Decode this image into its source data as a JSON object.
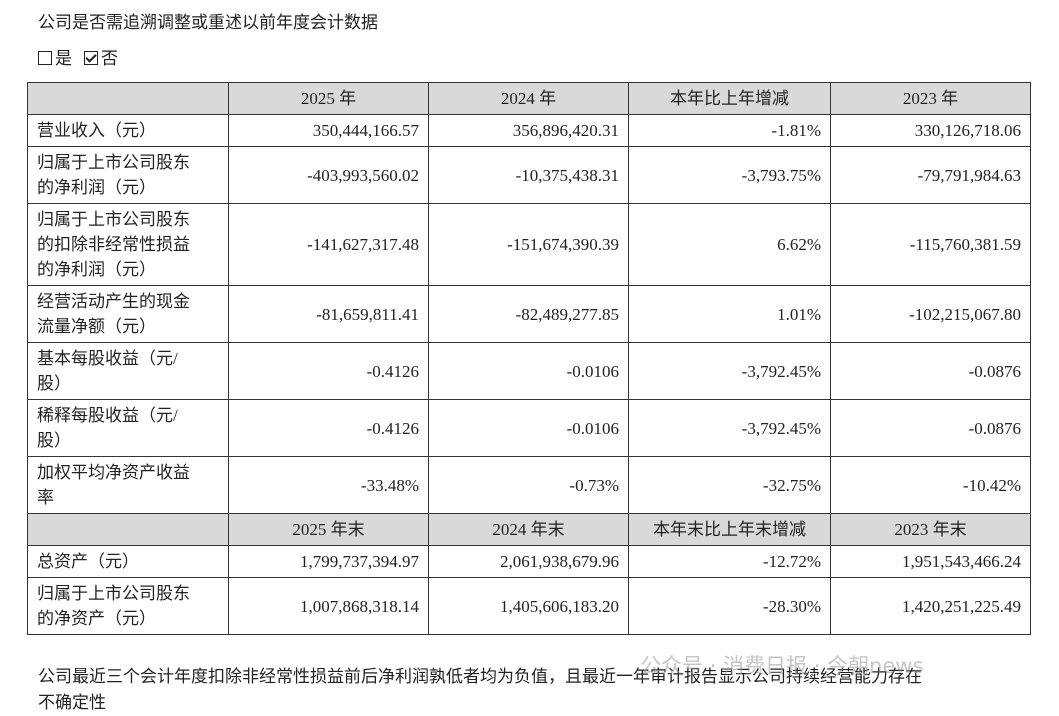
{
  "title": "公司是否需追溯调整或重述以前年度会计数据",
  "checkboxes": [
    {
      "label": "是",
      "checked": false
    },
    {
      "label": "否",
      "checked": true
    }
  ],
  "sections": [
    {
      "headers": [
        "2025 年",
        "2024 年",
        "本年比上年增减",
        "2023 年"
      ],
      "rows": [
        {
          "label": [
            "营业收入（元）"
          ],
          "cells": [
            "350,444,166.57",
            "356,896,420.31",
            "-1.81%",
            "330,126,718.06"
          ]
        },
        {
          "label": [
            "归属于上市公司股东",
            "的净利润（元）"
          ],
          "cells": [
            "-403,993,560.02",
            "-10,375,438.31",
            "-3,793.75%",
            "-79,791,984.63"
          ]
        },
        {
          "label": [
            "归属于上市公司股东",
            "的扣除非经常性损益",
            "的净利润（元）"
          ],
          "cells": [
            "-141,627,317.48",
            "-151,674,390.39",
            "6.62%",
            "-115,760,381.59"
          ]
        },
        {
          "label": [
            "经营活动产生的现金",
            "流量净额（元）"
          ],
          "cells": [
            "-81,659,811.41",
            "-82,489,277.85",
            "1.01%",
            "-102,215,067.80"
          ]
        },
        {
          "label": [
            "基本每股收益（元/",
            "股）"
          ],
          "cells": [
            "-0.4126",
            "-0.0106",
            "-3,792.45%",
            "-0.0876"
          ]
        },
        {
          "label": [
            "稀释每股收益（元/",
            "股）"
          ],
          "cells": [
            "-0.4126",
            "-0.0106",
            "-3,792.45%",
            "-0.0876"
          ]
        },
        {
          "label": [
            "加权平均净资产收益",
            "率"
          ],
          "cells": [
            "-33.48%",
            "-0.73%",
            "-32.75%",
            "-10.42%"
          ]
        }
      ]
    },
    {
      "headers": [
        "2025 年末",
        "2024 年末",
        "本年末比上年末增减",
        "2023 年末"
      ],
      "rows": [
        {
          "label": [
            "总资产（元）"
          ],
          "cells": [
            "1,799,737,394.97",
            "2,061,938,679.96",
            "-12.72%",
            "1,951,543,466.24"
          ]
        },
        {
          "label": [
            "归属于上市公司股东",
            "的净资产（元）"
          ],
          "cells": [
            "1,007,868,318.14",
            "1,405,606,183.20",
            "-28.30%",
            "1,420,251,225.49"
          ]
        }
      ]
    }
  ],
  "footer": [
    "公司最近三个会计年度扣除非经常性损益前后净利润孰低者均为负值，且最近一年审计报告显示公司持续经营能力存在",
    "不确定性"
  ],
  "watermark": "公众号 · 消费日报 · 今朝news"
}
